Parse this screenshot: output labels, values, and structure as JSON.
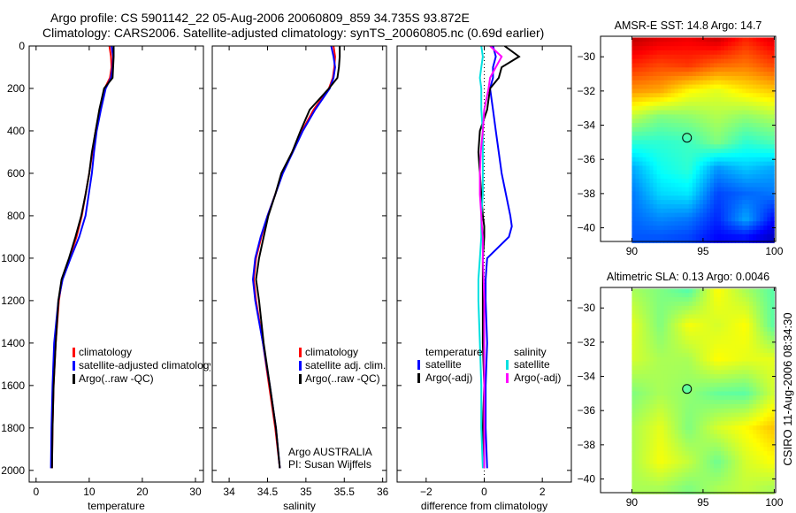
{
  "title_line1": "Argo profile: CS 5901142_22 05-Aug-2006 20060809_859 34.735S 93.872E",
  "title_line2": "Climatology: CARS2006. Satellite-adjusted climatology: synTS_20060805.nc (0.69d earlier)",
  "side_stamp": "CSIRO 11-Aug-2006 08:34:30",
  "chart_data": [
    {
      "id": "temperature",
      "type": "line",
      "xlabel": "temperature",
      "ylabel": "",
      "xlim": [
        -1.3,
        31.5
      ],
      "ylim": [
        2055,
        0
      ],
      "xticks": [
        0,
        10,
        20,
        30
      ],
      "yticks": [
        0,
        200,
        400,
        600,
        800,
        1000,
        1200,
        1400,
        1600,
        1800,
        2000
      ],
      "depth": [
        0,
        50,
        100,
        150,
        200,
        300,
        400,
        500,
        600,
        700,
        800,
        900,
        1000,
        1100,
        1200,
        1400,
        1600,
        1800,
        1990
      ],
      "series": [
        {
          "name": "climatology",
          "color": "#ff0000",
          "values": [
            13.8,
            14.1,
            14.2,
            13.9,
            12.9,
            12.0,
            11.2,
            10.6,
            10.0,
            9.3,
            8.6,
            7.6,
            6.3,
            4.9,
            4.3,
            3.7,
            3.3,
            3.1,
            3.0
          ]
        },
        {
          "name": "satellite-adjusted climatology",
          "color": "#0000ff",
          "values": [
            14.2,
            14.5,
            14.4,
            14.1,
            13.1,
            12.2,
            11.4,
            10.9,
            10.5,
            9.9,
            9.3,
            8.1,
            6.5,
            5.0,
            4.2,
            3.4,
            3.1,
            2.9,
            2.8
          ]
        },
        {
          "name": "Argo(..raw -QC)",
          "color": "#000000",
          "values": [
            14.6,
            14.6,
            14.5,
            14.4,
            12.8,
            11.9,
            11.2,
            10.5,
            10.0,
            9.3,
            8.5,
            7.4,
            6.2,
            4.8,
            4.2,
            3.7,
            3.3,
            3.1,
            3.0
          ]
        }
      ],
      "legend_position": "lower-middle"
    },
    {
      "id": "salinity",
      "type": "line",
      "xlabel": "salinity",
      "xlim": [
        33.78,
        36.05
      ],
      "ylim": [
        2055,
        0
      ],
      "xticks": [
        34,
        34.5,
        35,
        35.5,
        36
      ],
      "xticklabels": [
        "34",
        "34.5",
        "35",
        "35.5",
        "36"
      ],
      "depth": [
        0,
        50,
        100,
        150,
        200,
        300,
        400,
        500,
        600,
        700,
        800,
        900,
        1000,
        1100,
        1200,
        1400,
        1600,
        1800,
        1990
      ],
      "series": [
        {
          "name": "climatology",
          "color": "#ff0000",
          "values": [
            35.36,
            35.38,
            35.37,
            35.35,
            35.3,
            35.1,
            34.95,
            34.82,
            34.69,
            34.6,
            34.5,
            34.42,
            34.35,
            34.32,
            34.35,
            34.44,
            34.52,
            34.6,
            34.66
          ]
        },
        {
          "name": "satellite adj. clim.",
          "color": "#0000ff",
          "values": [
            35.33,
            35.36,
            35.38,
            35.36,
            35.31,
            35.12,
            34.96,
            34.83,
            34.7,
            34.6,
            34.5,
            34.41,
            34.34,
            34.31,
            34.34,
            34.44,
            34.53,
            34.61,
            34.66
          ]
        },
        {
          "name": "Argo(..raw -QC)",
          "color": "#000000",
          "values": [
            35.44,
            35.44,
            35.43,
            35.41,
            35.3,
            35.05,
            34.93,
            34.82,
            34.68,
            34.6,
            34.51,
            34.45,
            34.39,
            34.35,
            34.39,
            34.45,
            34.53,
            34.61,
            34.66
          ]
        }
      ],
      "annotation": [
        "Argo AUSTRALIA",
        "PI: Susan Wijffels"
      ],
      "legend_position": "lower-middle"
    },
    {
      "id": "difference",
      "type": "line",
      "xlabel": "difference from climatology",
      "xlim": [
        -3,
        3
      ],
      "ylim": [
        2055,
        0
      ],
      "xticks": [
        -2,
        0,
        2
      ],
      "depth": [
        0,
        50,
        100,
        150,
        200,
        300,
        400,
        500,
        600,
        700,
        800,
        850,
        900,
        1000,
        1100,
        1200,
        1400,
        1600,
        1800,
        1990
      ],
      "legend_headers": [
        "temperature",
        "salinity"
      ],
      "series": [
        {
          "name": "satellite",
          "group": "temperature",
          "color": "#0000ff",
          "values": [
            0.3,
            0.4,
            0.3,
            0.3,
            0.2,
            0.3,
            0.4,
            0.5,
            0.6,
            0.75,
            0.9,
            0.95,
            0.85,
            0.1,
            0.05,
            0.05,
            0.1,
            0.05,
            0.05,
            0.1
          ]
        },
        {
          "name": "Argo(-adj)",
          "group": "temperature",
          "color": "#000000",
          "values": [
            0.7,
            1.2,
            0.6,
            0.5,
            0.2,
            0.1,
            -0.15,
            -0.2,
            -0.15,
            -0.1,
            -0.05,
            0.0,
            0.0,
            -0.05,
            -0.05,
            -0.05,
            -0.05,
            0.0,
            -0.05,
            0.0
          ]
        },
        {
          "name": "satellite",
          "group": "salinity",
          "color": "#00e0e0",
          "values": [
            -0.1,
            -0.05,
            -0.1,
            -0.15,
            -0.1,
            -0.1,
            -0.05,
            -0.05,
            -0.05,
            -0.05,
            -0.1,
            -0.1,
            -0.1,
            -0.15,
            -0.2,
            -0.2,
            -0.15,
            -0.1,
            -0.1,
            -0.05
          ]
        },
        {
          "name": "Argo(-adj)",
          "group": "salinity",
          "color": "#ff00ff",
          "values": [
            0.2,
            0.6,
            0.4,
            0.2,
            0.15,
            0.0,
            -0.05,
            -0.12,
            -0.15,
            -0.15,
            -0.1,
            -0.08,
            -0.05,
            -0.05,
            -0.02,
            0.0,
            0.0,
            0.0,
            0.0,
            0.0
          ]
        }
      ]
    },
    {
      "id": "sst-map",
      "type": "heatmap",
      "title": "AMSR-E SST: 14.8 Argo: 14.7",
      "xlim": [
        87.8,
        100.1
      ],
      "ylim": [
        -40.8,
        -28.8
      ],
      "xticks": [
        90,
        95,
        100
      ],
      "yticks": [
        -30,
        -32,
        -34,
        -36,
        -38,
        -40
      ],
      "lon": [
        90,
        92,
        94,
        96,
        98,
        100
      ],
      "lat": [
        -29,
        -30.5,
        -32,
        -33.5,
        -35,
        -36.5,
        -38,
        -39.5,
        -40.5
      ],
      "color_range": [
        11.8,
        18.0
      ],
      "values": [
        [
          17.6,
          17.4,
          17.3,
          17.5,
          17.0,
          17.4
        ],
        [
          17.0,
          16.8,
          16.9,
          16.6,
          16.5,
          16.8
        ],
        [
          16.3,
          16.2,
          15.7,
          15.5,
          15.8,
          16.0
        ],
        [
          15.3,
          14.9,
          15.0,
          15.2,
          15.0,
          15.2
        ],
        [
          14.4,
          14.4,
          14.5,
          14.9,
          14.4,
          14.6
        ],
        [
          13.6,
          14.2,
          14.4,
          13.5,
          13.8,
          13.6
        ],
        [
          13.3,
          13.9,
          14.0,
          13.0,
          13.2,
          13.3
        ],
        [
          13.2,
          13.4,
          13.3,
          12.8,
          13.6,
          12.6
        ],
        [
          13.1,
          13.1,
          13.0,
          12.6,
          12.7,
          12.2
        ]
      ],
      "marker": {
        "lon": 93.872,
        "lat": -34.735
      }
    },
    {
      "id": "sla-map",
      "type": "heatmap",
      "title": "Altimetric SLA: 0.13 Argo: 0.0046",
      "xlim": [
        87.8,
        100.1
      ],
      "ylim": [
        -40.8,
        -28.8
      ],
      "xticks": [
        90,
        95,
        100
      ],
      "yticks": [
        -30,
        -32,
        -34,
        -36,
        -38,
        -40
      ],
      "lon": [
        90,
        92,
        94,
        96,
        98,
        100
      ],
      "lat": [
        -29,
        -31,
        -33,
        -35,
        -37,
        -39,
        -40.5
      ],
      "color_range": [
        -0.6,
        0.6
      ],
      "values": [
        [
          0.05,
          0.0,
          -0.05,
          0.15,
          0.05,
          -0.05
        ],
        [
          0.12,
          0.0,
          0.14,
          0.1,
          0.15,
          -0.05
        ],
        [
          0.1,
          0.05,
          0.05,
          0.15,
          0.12,
          0.12
        ],
        [
          0.0,
          0.05,
          0.02,
          -0.03,
          -0.04,
          0.1
        ],
        [
          0.05,
          0.12,
          0.0,
          0.1,
          0.15,
          0.22
        ],
        [
          0.05,
          0.14,
          0.08,
          -0.02,
          0.1,
          0.15
        ],
        [
          0.05,
          0.05,
          0.0,
          0.05,
          0.08,
          0.05
        ]
      ],
      "marker": {
        "lon": 93.872,
        "lat": -34.735
      }
    }
  ]
}
